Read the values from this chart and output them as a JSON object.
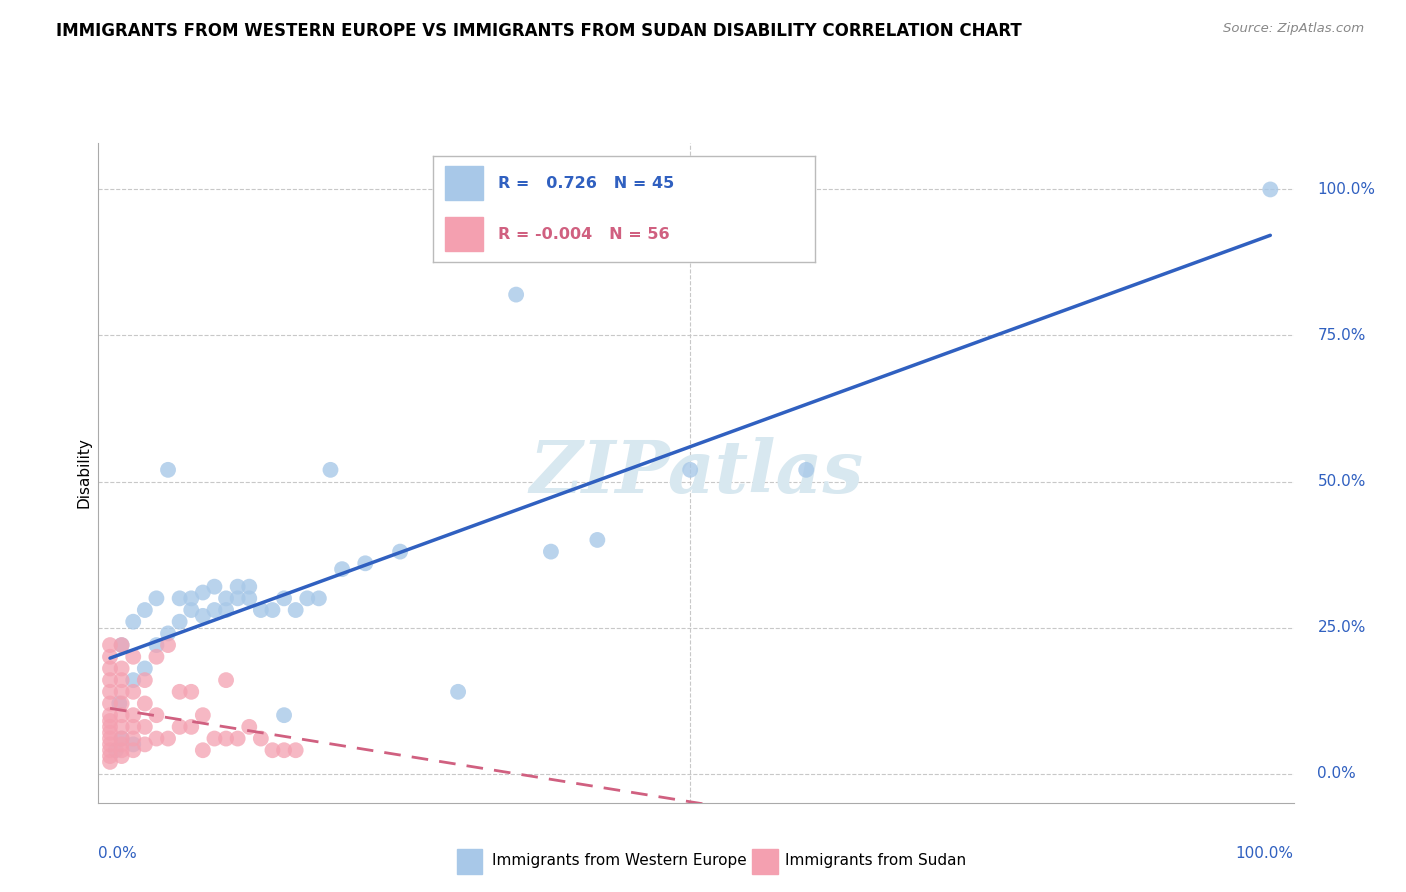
{
  "title": "IMMIGRANTS FROM WESTERN EUROPE VS IMMIGRANTS FROM SUDAN DISABILITY CORRELATION CHART",
  "source": "Source: ZipAtlas.com",
  "ylabel": "Disability",
  "legend_blue_label": "Immigrants from Western Europe",
  "legend_pink_label": "Immigrants from Sudan",
  "blue_R": 0.726,
  "blue_N": 45,
  "pink_R": -0.004,
  "pink_N": 56,
  "blue_color": "#a8c8e8",
  "pink_color": "#f4a0b0",
  "blue_line_color": "#3060c0",
  "pink_line_color": "#d06080",
  "watermark_color": "#d8e8f0",
  "grid_color": "#c8c8c8",
  "blue_x": [
    0.005,
    0.008,
    0.01,
    0.01,
    0.02,
    0.02,
    0.02,
    0.03,
    0.03,
    0.04,
    0.04,
    0.05,
    0.05,
    0.06,
    0.06,
    0.07,
    0.07,
    0.08,
    0.08,
    0.09,
    0.09,
    0.1,
    0.1,
    0.11,
    0.11,
    0.12,
    0.12,
    0.13,
    0.14,
    0.15,
    0.15,
    0.16,
    0.17,
    0.18,
    0.19,
    0.2,
    0.22,
    0.25,
    0.3,
    0.35,
    0.38,
    0.42,
    0.5,
    0.6,
    1.0
  ],
  "blue_y": [
    0.04,
    0.12,
    0.06,
    0.22,
    0.05,
    0.16,
    0.26,
    0.18,
    0.28,
    0.22,
    0.3,
    0.24,
    0.52,
    0.26,
    0.3,
    0.28,
    0.3,
    0.27,
    0.31,
    0.28,
    0.32,
    0.28,
    0.3,
    0.3,
    0.32,
    0.3,
    0.32,
    0.28,
    0.28,
    0.1,
    0.3,
    0.28,
    0.3,
    0.3,
    0.52,
    0.35,
    0.36,
    0.38,
    0.14,
    0.82,
    0.38,
    0.4,
    0.52,
    0.52,
    1.0
  ],
  "pink_x": [
    0.0,
    0.0,
    0.0,
    0.0,
    0.0,
    0.0,
    0.0,
    0.0,
    0.0,
    0.0,
    0.0,
    0.0,
    0.0,
    0.0,
    0.0,
    0.01,
    0.01,
    0.01,
    0.01,
    0.01,
    0.01,
    0.01,
    0.01,
    0.01,
    0.01,
    0.01,
    0.02,
    0.02,
    0.02,
    0.02,
    0.02,
    0.02,
    0.03,
    0.03,
    0.03,
    0.03,
    0.04,
    0.04,
    0.04,
    0.05,
    0.05,
    0.06,
    0.06,
    0.07,
    0.07,
    0.08,
    0.08,
    0.09,
    0.1,
    0.1,
    0.11,
    0.12,
    0.13,
    0.14,
    0.15,
    0.16
  ],
  "pink_y": [
    0.02,
    0.03,
    0.04,
    0.05,
    0.06,
    0.07,
    0.08,
    0.09,
    0.1,
    0.12,
    0.14,
    0.16,
    0.18,
    0.2,
    0.22,
    0.03,
    0.04,
    0.05,
    0.06,
    0.08,
    0.1,
    0.12,
    0.14,
    0.16,
    0.18,
    0.22,
    0.04,
    0.06,
    0.08,
    0.1,
    0.14,
    0.2,
    0.05,
    0.08,
    0.12,
    0.16,
    0.06,
    0.1,
    0.2,
    0.06,
    0.22,
    0.08,
    0.14,
    0.08,
    0.14,
    0.04,
    0.1,
    0.06,
    0.06,
    0.16,
    0.06,
    0.08,
    0.06,
    0.04,
    0.04,
    0.04
  ],
  "xlim": [
    0.0,
    1.0
  ],
  "ylim": [
    0.0,
    1.0
  ],
  "ytick_vals": [
    0.0,
    0.25,
    0.5,
    0.75,
    1.0
  ],
  "ytick_labels": [
    "0.0%",
    "25.0%",
    "50.0%",
    "75.0%",
    "100.0%"
  ],
  "xtick_labels": [
    "0.0%",
    "100.0%"
  ]
}
